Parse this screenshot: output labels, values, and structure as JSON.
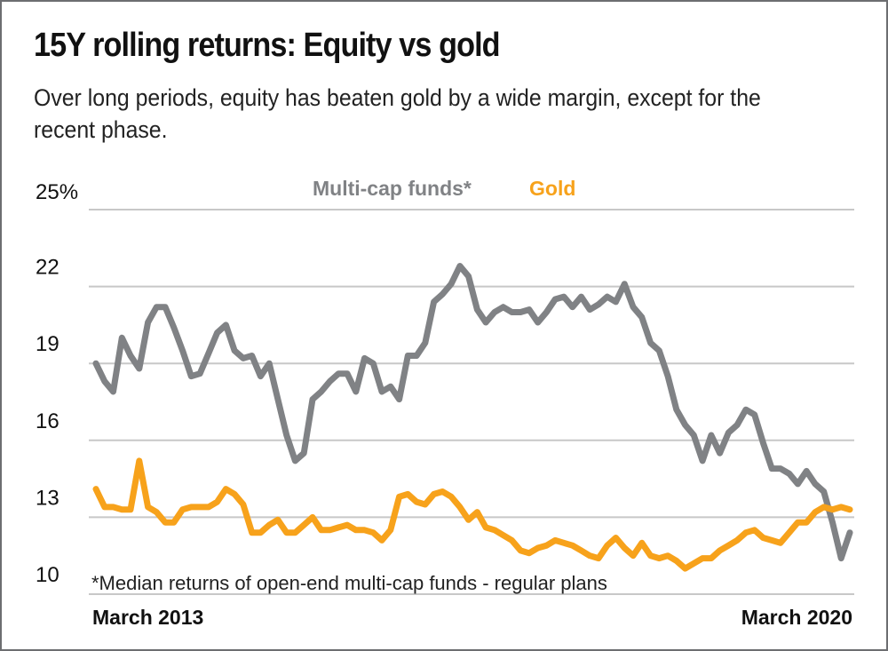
{
  "header": {
    "title": "15Y rolling returns: Equity vs gold",
    "subtitle": "Over long periods, equity has beaten gold by a wide margin, except for the recent phase."
  },
  "chart_data": {
    "type": "line",
    "title": "15Y rolling returns: Equity vs gold",
    "xlabel": "",
    "ylabel": "",
    "x_start": "March 2013",
    "x_end": "March 2020",
    "x_tick_labels": [
      "March 2013",
      "March 2020"
    ],
    "ylim": [
      10,
      25
    ],
    "y_ticks": [
      10,
      13,
      16,
      19,
      22,
      25
    ],
    "y_tick_labels": [
      "10",
      "13",
      "16",
      "19",
      "22",
      "25%"
    ],
    "grid": true,
    "legend_placement": "top-center",
    "footnote": "*Median returns of open-end multi-cap funds - regular plans",
    "series": [
      {
        "name": "Multi-cap funds*",
        "color": "#808285",
        "values": [
          19.0,
          18.3,
          17.9,
          20.0,
          19.3,
          18.8,
          20.6,
          21.2,
          21.2,
          20.4,
          19.5,
          18.5,
          18.6,
          19.4,
          20.2,
          20.5,
          19.5,
          19.2,
          19.3,
          18.5,
          19.0,
          17.6,
          16.2,
          15.2,
          15.5,
          17.6,
          17.9,
          18.3,
          18.6,
          18.6,
          17.9,
          19.2,
          19.0,
          17.9,
          18.1,
          17.6,
          19.3,
          19.3,
          19.8,
          21.4,
          21.7,
          22.1,
          22.8,
          22.4,
          21.1,
          20.6,
          21.0,
          21.2,
          21.0,
          21.0,
          21.1,
          20.6,
          21.0,
          21.5,
          21.6,
          21.2,
          21.6,
          21.1,
          21.3,
          21.6,
          21.4,
          22.1,
          21.2,
          20.8,
          19.8,
          19.5,
          18.5,
          17.2,
          16.6,
          16.2,
          15.2,
          16.2,
          15.5,
          16.3,
          16.6,
          17.2,
          17.0,
          15.9,
          14.9,
          14.9,
          14.7,
          14.3,
          14.8,
          14.3,
          14.0,
          12.8,
          11.4,
          12.4
        ]
      },
      {
        "name": "Gold",
        "color": "#f7a21b",
        "values": [
          14.1,
          13.4,
          13.4,
          13.3,
          13.3,
          15.2,
          13.4,
          13.2,
          12.8,
          12.8,
          13.3,
          13.4,
          13.4,
          13.4,
          13.6,
          14.1,
          13.9,
          13.5,
          12.4,
          12.4,
          12.7,
          12.9,
          12.4,
          12.4,
          12.7,
          13.0,
          12.5,
          12.5,
          12.6,
          12.7,
          12.5,
          12.5,
          12.4,
          12.1,
          12.5,
          13.8,
          13.9,
          13.6,
          13.5,
          13.9,
          14.0,
          13.8,
          13.4,
          12.9,
          13.2,
          12.6,
          12.5,
          12.3,
          12.1,
          11.7,
          11.6,
          11.8,
          11.9,
          12.1,
          12.0,
          11.9,
          11.7,
          11.5,
          11.4,
          11.9,
          12.2,
          11.8,
          11.5,
          12.0,
          11.5,
          11.4,
          11.5,
          11.3,
          11.0,
          11.2,
          11.4,
          11.4,
          11.7,
          11.9,
          12.1,
          12.4,
          12.5,
          12.2,
          12.1,
          12.0,
          12.4,
          12.8,
          12.8,
          13.2,
          13.4,
          13.3,
          13.4,
          13.3
        ]
      }
    ]
  }
}
